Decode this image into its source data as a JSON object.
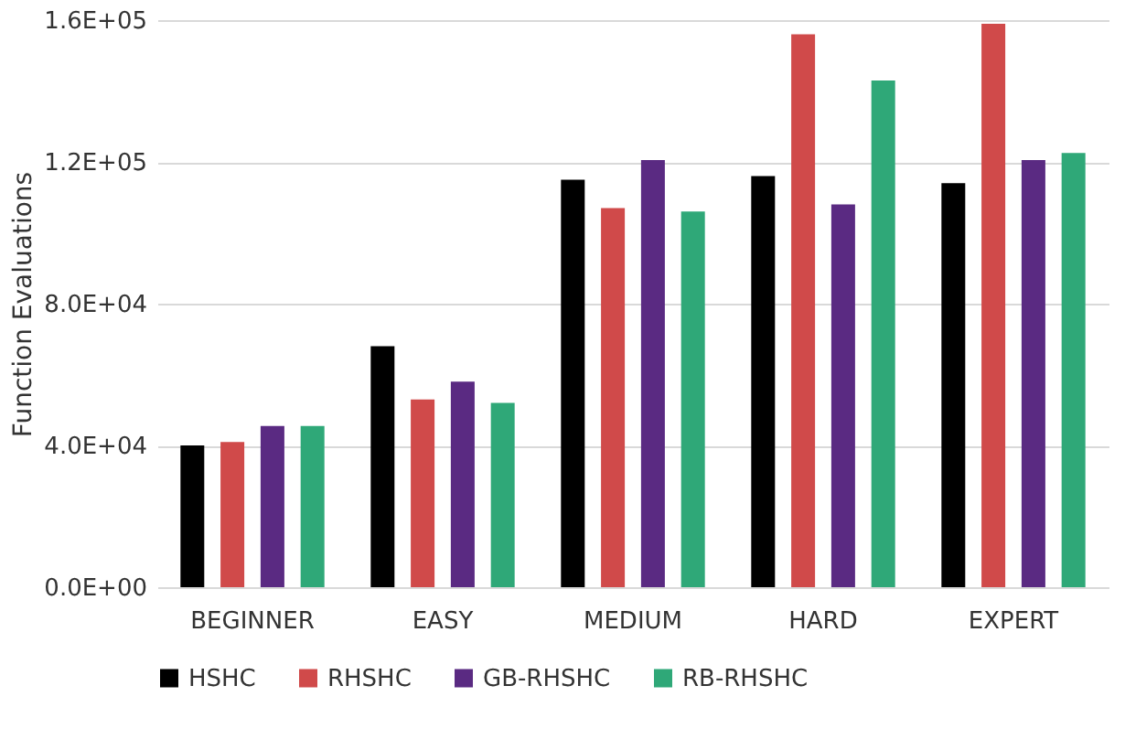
{
  "chart_data": {
    "type": "bar",
    "ylabel": "Function Evaluations",
    "categories": [
      "BEGINNER",
      "EASY",
      "MEDIUM",
      "HARD",
      "EXPERT"
    ],
    "series": [
      {
        "name": "HSHC",
        "color": "#000000",
        "values": [
          40000,
          68000,
          115000,
          116000,
          114000
        ]
      },
      {
        "name": "RHSHC",
        "color": "#d04a4a",
        "values": [
          41000,
          53000,
          107000,
          156000,
          159000
        ]
      },
      {
        "name": "GB-RHSHC",
        "color": "#5a2a82",
        "values": [
          45500,
          58000,
          120500,
          108000,
          120500
        ]
      },
      {
        "name": "RB-RHSHC",
        "color": "#2fa878",
        "values": [
          45500,
          52000,
          106000,
          143000,
          122500
        ]
      }
    ],
    "ylim": [
      0,
      160000
    ],
    "yticks": [
      {
        "value": 0,
        "label": "0.0E+00"
      },
      {
        "value": 40000,
        "label": "4.0E+04"
      },
      {
        "value": 80000,
        "label": "8.0E+04"
      },
      {
        "value": 120000,
        "label": "1.2E+05"
      },
      {
        "value": 160000,
        "label": "1.6E+05"
      }
    ],
    "grid": "y",
    "legend": "bottom"
  }
}
